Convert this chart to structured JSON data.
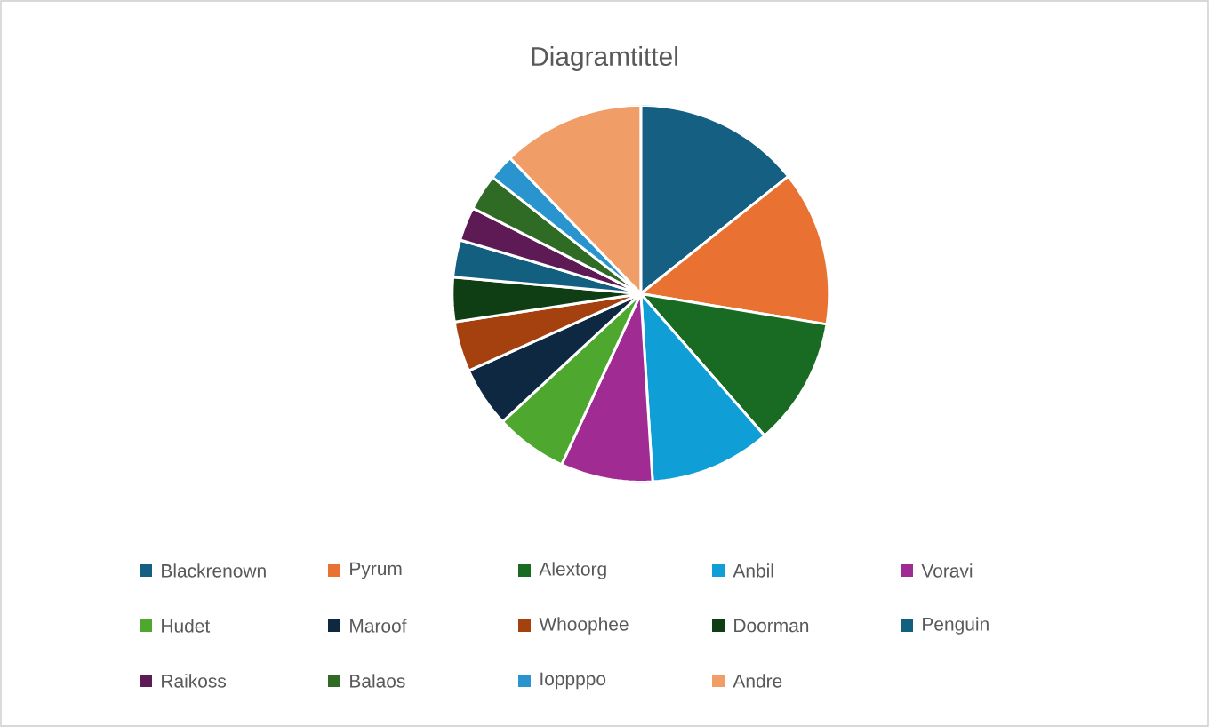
{
  "chart_data": {
    "type": "pie",
    "title": "Diagramtittel",
    "legend": "bottom",
    "categories": [
      "Blackrenown",
      "Pyrum",
      "Alextorg",
      "Anbil",
      "Voravi",
      "Hudet",
      "Maroof",
      "Whoophee",
      "Doorman",
      "Penguin",
      "Raikoss",
      "Balaos",
      "Ioppppo",
      "Andre"
    ],
    "values": [
      14.3,
      13.3,
      11.0,
      10.4,
      7.9,
      6.2,
      5.2,
      4.3,
      3.8,
      3.2,
      2.9,
      3.1,
      2.2,
      12.2
    ],
    "colors": [
      "#156082",
      "#e97132",
      "#196b24",
      "#0f9ed5",
      "#a02b93",
      "#4ea72e",
      "#0e2841",
      "#a5410e",
      "#0f3d14",
      "#135f80",
      "#5e1a55",
      "#306b25",
      "#2a94cf",
      "#f09d67"
    ]
  }
}
